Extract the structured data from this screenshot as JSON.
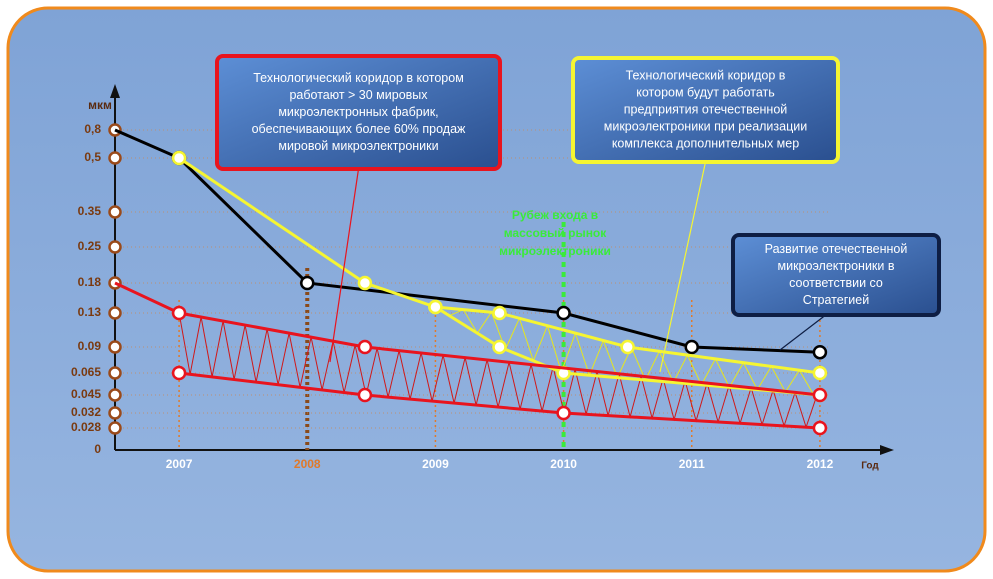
{
  "chart_data": {
    "type": "line",
    "y_label": "мкм",
    "x_label": "Год",
    "xlim": [
      2006.5,
      2012.5
    ],
    "xticks": [
      2007,
      2008,
      2009,
      2010,
      2011,
      2012
    ],
    "ylim": [
      0,
      0.8
    ],
    "yticks": [
      {
        "value": 0.8,
        "label": "0,8"
      },
      {
        "value": 0.5,
        "label": "0,5"
      },
      0.35,
      0.25,
      0.18,
      0.13,
      0.09,
      0.065,
      0.045,
      0.032,
      0.028,
      0
    ],
    "series": [
      {
        "color": "#000000",
        "x": [
          2006.5,
          2007,
          2008,
          2010,
          2011,
          2012
        ],
        "values": [
          0.8,
          0.5,
          0.18,
          0.13,
          0.09,
          0.085
        ]
      },
      {
        "color": "#f5f532",
        "x": [
          2007,
          2008.45,
          2009,
          2009.5,
          2010.5,
          2012
        ],
        "values": [
          0.5,
          0.18,
          0.14,
          0.13,
          0.09,
          0.065
        ]
      },
      {
        "color": "#f5f532",
        "x": [
          2009,
          2009.5,
          2010,
          2012
        ],
        "values": [
          0.14,
          0.09,
          0.065,
          0.045
        ]
      },
      {
        "color": "#e8141e",
        "x": [
          2006.5,
          2007,
          2008.45,
          2012
        ],
        "values": [
          0.18,
          0.13,
          0.09,
          0.045
        ]
      },
      {
        "color": "#e8141e",
        "x": [
          2007,
          2008.45,
          2010,
          2012
        ],
        "values": [
          0.065,
          0.045,
          0.032,
          0.028
        ]
      }
    ],
    "threshold": {
      "x": 2010,
      "lines": [
        "Рубеж входа в",
        "массовый рынок",
        "микроэлектроники"
      ]
    },
    "annotations": [
      {
        "lines": [
          "Технологический коридор в котором",
          "работают > 30 мировых",
          "микроэлектронных  фабрик,",
          "обеспечивающих более 60% продаж",
          "мировой микроэлектроники"
        ]
      },
      {
        "lines": [
          "Технологический коридор в",
          "котором будут работать",
          "предприятия отечественной",
          "микроэлектроники при реализации",
          "комплекса дополнительных мер"
        ]
      },
      {
        "lines": [
          "Развитие отечественной",
          "микроэлектроники в",
          "соответствии со",
          "Стратегией"
        ]
      }
    ]
  }
}
